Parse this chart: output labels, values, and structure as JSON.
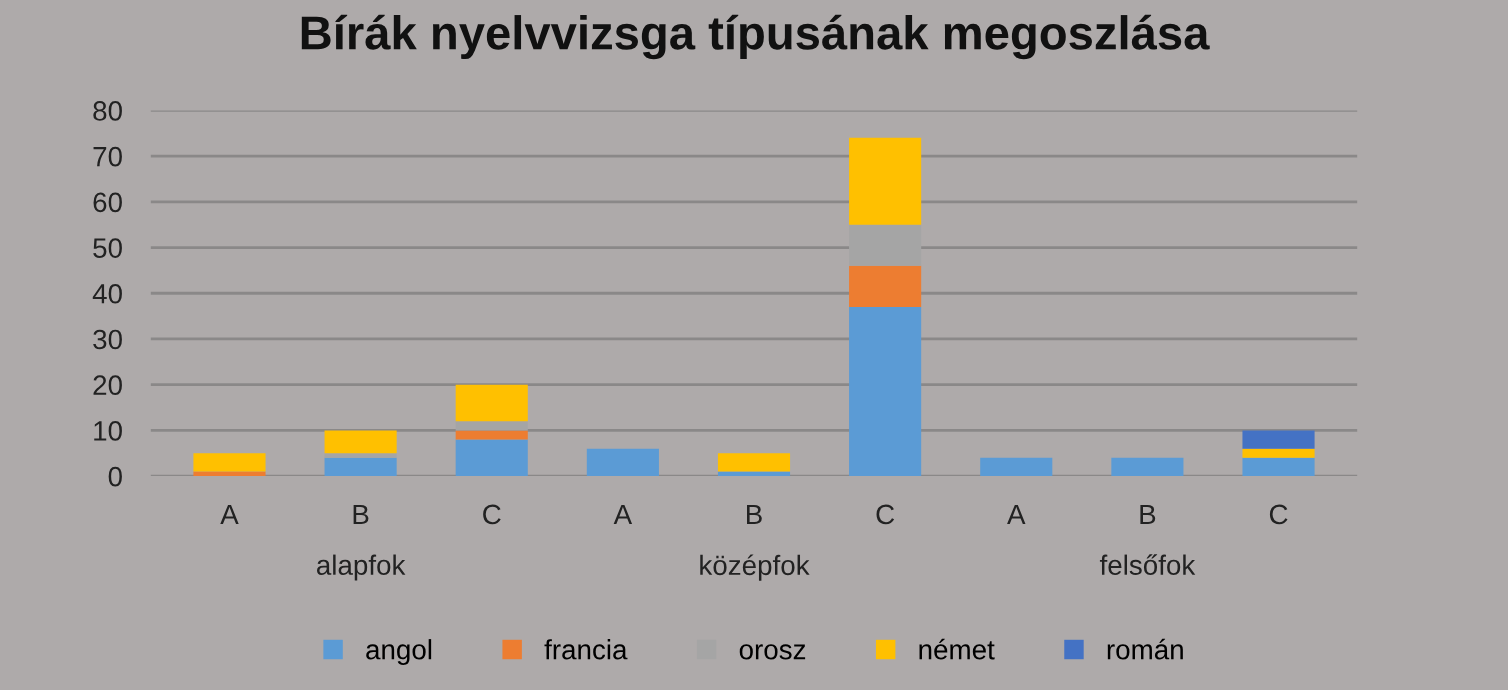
{
  "chart_data": {
    "type": "bar",
    "title": "Bírák nyelvvizsga típusának megoszlása",
    "categories": [
      "A",
      "B",
      "C",
      "A",
      "B",
      "C",
      "A",
      "B",
      "C"
    ],
    "series": [
      {
        "name": "angol",
        "color": "#5b9bd5",
        "values": [
          0,
          4,
          8,
          6,
          1,
          37,
          4,
          4,
          4
        ]
      },
      {
        "name": "francia",
        "color": "#ed7d31",
        "values": [
          1,
          0,
          2,
          0,
          0,
          9,
          0,
          0,
          0
        ]
      },
      {
        "name": "orosz",
        "color": "#a5a5a5",
        "values": [
          0,
          1,
          2,
          0,
          0,
          9,
          0,
          0,
          0
        ]
      },
      {
        "name": "német",
        "color": "#ffc000",
        "values": [
          4,
          5,
          8,
          0,
          4,
          19,
          0,
          0,
          2
        ]
      },
      {
        "name": "román",
        "color": "#4472c4",
        "values": [
          0,
          0,
          0,
          0,
          0,
          0,
          0,
          0,
          4
        ]
      }
    ],
    "stacked": true,
    "annotations": [
      "alapfok",
      "középfok",
      "felsőfok"
    ],
    "ylim": [
      0,
      80
    ],
    "yticks": [
      0,
      10,
      20,
      30,
      40,
      50,
      60,
      70,
      80
    ],
    "grid": "y",
    "legend": "bottom"
  }
}
